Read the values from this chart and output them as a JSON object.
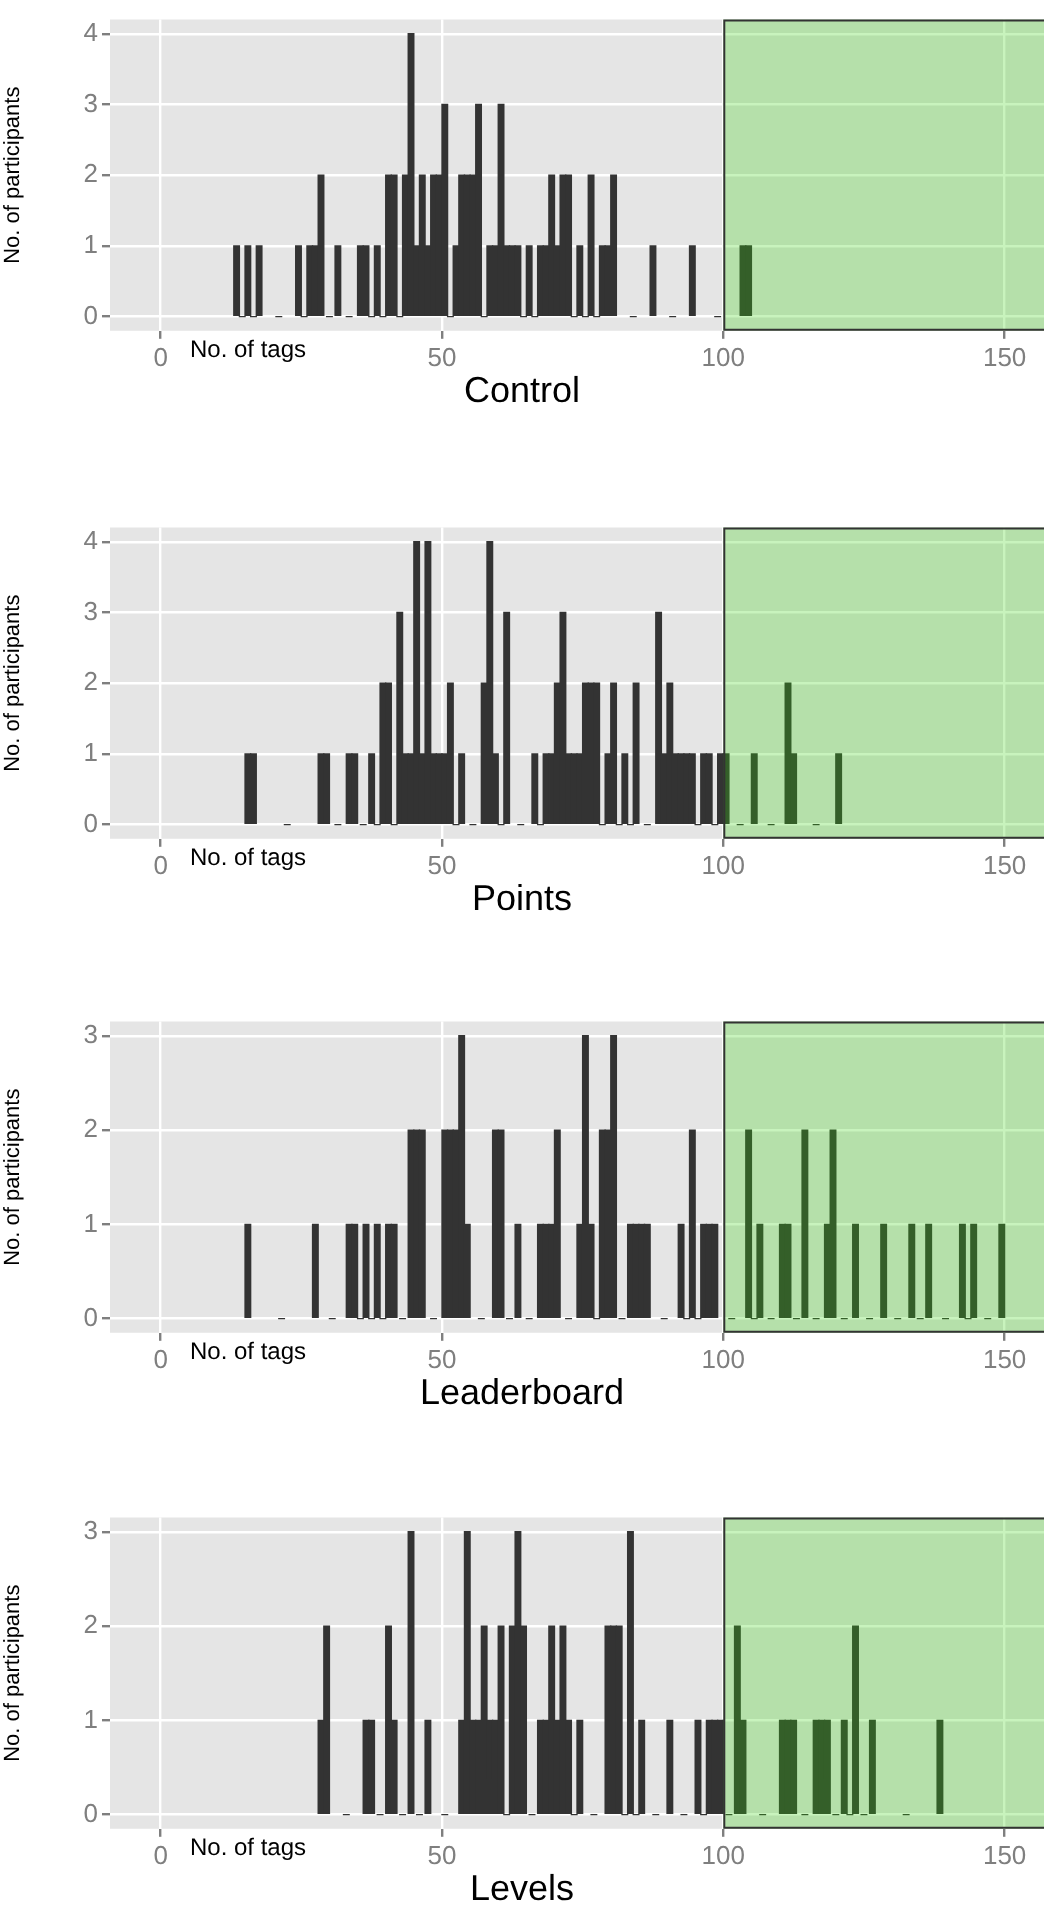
{
  "chart_data": [
    {
      "type": "histogram",
      "title": "Control",
      "xlabel": "No. of tags",
      "ylabel": "No. of participants",
      "color": "#333333",
      "xlim": [
        -9,
        157
      ],
      "xticks": [
        0,
        50,
        100,
        150
      ],
      "ylim": [
        -0.2,
        4.2
      ],
      "yticks": [
        0,
        1,
        2,
        3,
        4
      ],
      "grid": true,
      "bands": [
        {
          "axis": "x",
          "from": 100,
          "to": 157,
          "color": "#37d30f"
        }
      ],
      "bins": [
        13,
        14,
        15,
        16,
        17,
        18,
        24,
        25,
        26,
        27,
        28,
        29,
        31,
        32,
        35,
        36,
        37,
        38,
        39,
        40,
        41,
        42,
        43,
        44,
        45,
        46,
        47,
        48,
        49,
        50,
        51,
        52,
        53,
        54,
        55,
        56,
        57,
        58,
        59,
        60,
        61,
        62,
        63,
        64,
        65,
        66,
        67,
        68,
        69,
        70,
        71,
        72,
        73,
        74,
        75,
        76,
        77,
        78,
        79,
        80,
        81,
        87,
        88,
        94,
        95,
        103,
        104,
        105
      ],
      "values": [
        1,
        0,
        1,
        0,
        1,
        0,
        1,
        0,
        1,
        1,
        2,
        0,
        1,
        0,
        1,
        1,
        0,
        1,
        0,
        2,
        2,
        0,
        2,
        4,
        1,
        2,
        1,
        2,
        2,
        3,
        0,
        1,
        2,
        2,
        2,
        3,
        0,
        1,
        1,
        3,
        1,
        1,
        1,
        0,
        1,
        0,
        1,
        1,
        2,
        1,
        2,
        2,
        0,
        1,
        0,
        2,
        0,
        1,
        1,
        2,
        0,
        1,
        0,
        1,
        0,
        1,
        1
      ]
    },
    {
      "type": "histogram",
      "title": "Points",
      "xlabel": "No. of tags",
      "ylabel": "No. of participants",
      "color": "#333333",
      "xlim": [
        -9,
        157
      ],
      "xticks": [
        0,
        50,
        100,
        150
      ],
      "ylim": [
        -0.2,
        4.2
      ],
      "yticks": [
        0,
        1,
        2,
        3,
        4
      ],
      "grid": true,
      "bands": [
        {
          "axis": "x",
          "from": 100,
          "to": 157,
          "color": "#37d30f"
        }
      ],
      "bins": [
        15,
        16,
        17,
        28,
        29,
        30,
        33,
        34,
        35,
        37,
        38,
        39,
        40,
        41,
        42,
        43,
        44,
        45,
        46,
        47,
        48,
        49,
        50,
        51,
        52,
        53,
        54,
        57,
        58,
        59,
        60,
        61,
        62,
        66,
        67,
        68,
        69,
        70,
        71,
        72,
        73,
        74,
        75,
        76,
        77,
        78,
        79,
        80,
        81,
        82,
        83,
        84,
        85,
        88,
        89,
        90,
        91,
        92,
        93,
        94,
        95,
        96,
        97,
        98,
        99,
        100,
        101,
        105,
        106,
        111,
        112,
        113,
        120,
        121
      ],
      "values": [
        1,
        1,
        0,
        1,
        1,
        0,
        1,
        1,
        0,
        1,
        0,
        2,
        2,
        0,
        3,
        1,
        1,
        4,
        1,
        4,
        1,
        1,
        1,
        2,
        0,
        1,
        0,
        2,
        4,
        1,
        0,
        3,
        0,
        1,
        0,
        1,
        1,
        2,
        3,
        1,
        1,
        1,
        2,
        2,
        2,
        0,
        1,
        2,
        0,
        1,
        0,
        2,
        0,
        3,
        1,
        2,
        1,
        1,
        1,
        1,
        0,
        1,
        1,
        0,
        1,
        1,
        0,
        1,
        0,
        2,
        1,
        0,
        1
      ]
    },
    {
      "type": "histogram",
      "title": "Leaderboard",
      "xlabel": "No. of tags",
      "ylabel": "No. of participants",
      "color": "#333333",
      "xlim": [
        -9,
        157
      ],
      "xticks": [
        0,
        50,
        100,
        150
      ],
      "ylim": [
        -0.15,
        3.15
      ],
      "yticks": [
        0,
        1,
        2,
        3
      ],
      "grid": true,
      "bands": [
        {
          "axis": "x",
          "from": 100,
          "to": 157,
          "color": "#37d30f"
        }
      ],
      "bins": [
        15,
        16,
        27,
        28,
        33,
        34,
        35,
        36,
        37,
        38,
        39,
        40,
        41,
        42,
        44,
        45,
        46,
        47,
        50,
        51,
        52,
        53,
        54,
        55,
        59,
        60,
        61,
        63,
        64,
        67,
        68,
        69,
        70,
        71,
        74,
        75,
        76,
        77,
        78,
        79,
        80,
        81,
        83,
        84,
        85,
        86,
        87,
        92,
        93,
        94,
        95,
        96,
        97,
        98,
        99,
        104,
        105,
        106,
        107,
        110,
        111,
        112,
        114,
        115,
        118,
        119,
        120,
        123,
        124,
        128,
        129,
        133,
        134,
        136,
        137,
        142,
        143,
        144,
        145,
        149,
        150
      ],
      "values": [
        1,
        0,
        1,
        0,
        1,
        1,
        0,
        1,
        0,
        1,
        0,
        1,
        1,
        0,
        2,
        2,
        2,
        0,
        2,
        2,
        2,
        3,
        1,
        0,
        2,
        2,
        0,
        1,
        0,
        1,
        1,
        1,
        2,
        0,
        1,
        3,
        1,
        0,
        2,
        2,
        3,
        0,
        1,
        1,
        1,
        1,
        0,
        1,
        0,
        2,
        0,
        1,
        1,
        1,
        0,
        2,
        0,
        1,
        0,
        1,
        1,
        0,
        2,
        0,
        1,
        2,
        0,
        1,
        0,
        1,
        0,
        1,
        0,
        1,
        0,
        1,
        0,
        1,
        0,
        1
      ]
    },
    {
      "type": "histogram",
      "title": "Levels",
      "xlabel": "No. of tags",
      "ylabel": "No. of participants",
      "color": "#333333",
      "xlim": [
        -9,
        157
      ],
      "xticks": [
        0,
        50,
        100,
        150
      ],
      "ylim": [
        -0.15,
        3.15
      ],
      "yticks": [
        0,
        1,
        2,
        3
      ],
      "grid": true,
      "bands": [
        {
          "axis": "x",
          "from": 100,
          "to": 157,
          "color": "#37d30f"
        }
      ],
      "bins": [
        28,
        29,
        30,
        36,
        37,
        38,
        40,
        41,
        42,
        44,
        45,
        47,
        48,
        53,
        54,
        55,
        56,
        57,
        58,
        59,
        60,
        61,
        62,
        63,
        64,
        65,
        67,
        68,
        69,
        70,
        71,
        72,
        73,
        74,
        75,
        79,
        80,
        81,
        82,
        83,
        84,
        85,
        86,
        90,
        91,
        95,
        96,
        97,
        98,
        99,
        100,
        102,
        103,
        104,
        110,
        111,
        112,
        113,
        116,
        117,
        118,
        119,
        121,
        122,
        123,
        124,
        126,
        127,
        138,
        139
      ],
      "values": [
        1,
        2,
        0,
        1,
        1,
        0,
        2,
        1,
        0,
        3,
        0,
        1,
        0,
        1,
        3,
        1,
        1,
        2,
        1,
        1,
        2,
        0,
        2,
        3,
        2,
        0,
        1,
        1,
        2,
        1,
        2,
        1,
        0,
        1,
        0,
        2,
        2,
        2,
        0,
        3,
        0,
        1,
        0,
        1,
        0,
        1,
        0,
        1,
        1,
        1,
        0,
        2,
        1,
        0,
        1,
        1,
        1,
        0,
        1,
        1,
        1,
        0,
        1,
        0,
        2,
        0,
        1,
        0,
        1
      ]
    }
  ]
}
